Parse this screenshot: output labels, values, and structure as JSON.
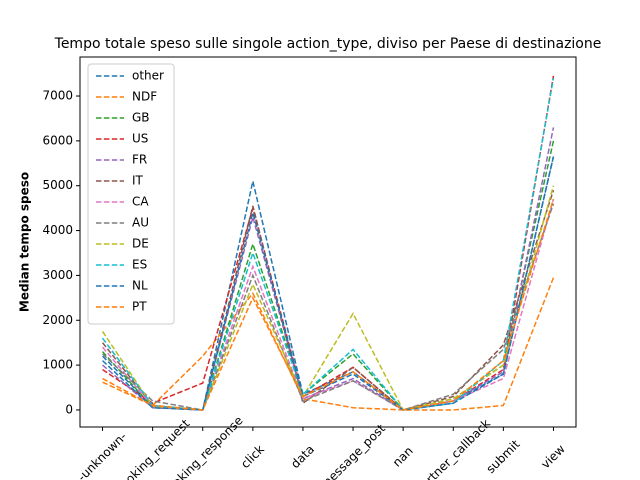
{
  "chart_data": {
    "type": "line",
    "title": "Tempo totale speso sulle singole action_type, diviso per Paese di destinazione",
    "y_label": "Median tempo speso",
    "categories": [
      "-unknown-",
      "booking_request",
      "booking_response",
      "click",
      "data",
      "message_post",
      "nan",
      "partner_callback",
      "submit",
      "view"
    ],
    "series": [
      {
        "name": "other",
        "color": "#1f77b4",
        "values": [
          1200,
          80,
          0,
          5100,
          350,
          850,
          0,
          200,
          800,
          5650
        ]
      },
      {
        "name": "NDF",
        "color": "#ff7f0e",
        "values": [
          620,
          100,
          1200,
          2600,
          250,
          50,
          0,
          0,
          100,
          2950
        ]
      },
      {
        "name": "GB",
        "color": "#2ca02c",
        "values": [
          1300,
          60,
          0,
          3700,
          350,
          1250,
          0,
          250,
          1000,
          6000
        ]
      },
      {
        "name": "US",
        "color": "#d62728",
        "values": [
          900,
          150,
          600,
          4500,
          300,
          950,
          0,
          200,
          900,
          7450
        ]
      },
      {
        "name": "FR",
        "color": "#9467bd",
        "values": [
          1000,
          50,
          0,
          4300,
          250,
          700,
          0,
          200,
          850,
          6300
        ]
      },
      {
        "name": "IT",
        "color": "#8c564b",
        "values": [
          1500,
          100,
          0,
          4550,
          150,
          950,
          0,
          300,
          1450,
          4900
        ]
      },
      {
        "name": "CA",
        "color": "#e377c2",
        "values": [
          1400,
          80,
          0,
          3200,
          250,
          650,
          0,
          200,
          700,
          4700
        ]
      },
      {
        "name": "AU",
        "color": "#7f7f7f",
        "values": [
          1250,
          200,
          0,
          3000,
          200,
          650,
          0,
          350,
          1350,
          4600
        ]
      },
      {
        "name": "DE",
        "color": "#bcbd22",
        "values": [
          1750,
          80,
          0,
          2800,
          300,
          2150,
          0,
          250,
          1000,
          5000
        ]
      },
      {
        "name": "ES",
        "color": "#17becf",
        "values": [
          1600,
          100,
          0,
          3500,
          350,
          1350,
          0,
          150,
          1100,
          7400
        ]
      },
      {
        "name": "NL",
        "color": "#1f77b4",
        "values": [
          1100,
          50,
          0,
          4400,
          300,
          800,
          0,
          150,
          800,
          5650
        ]
      },
      {
        "name": "PT",
        "color": "#ff7f0e",
        "values": [
          700,
          100,
          0,
          2500,
          300,
          850,
          0,
          200,
          1100,
          4700
        ]
      }
    ],
    "ylim": [
      -380,
      7870
    ],
    "yticks": [
      0,
      1000,
      2000,
      3000,
      4000,
      5000,
      6000,
      7000
    ],
    "legend": "upper left"
  }
}
